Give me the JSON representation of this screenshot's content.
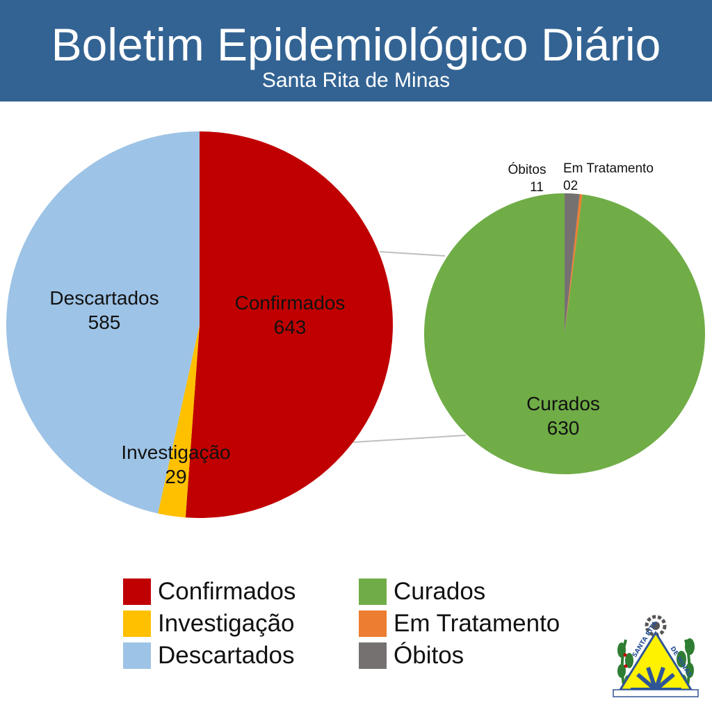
{
  "header": {
    "title": "Boletim Epidemiológico Diário",
    "subtitle": "Santa Rita de Minas"
  },
  "chart_data": [
    {
      "type": "pie",
      "slices": [
        {
          "label": "Confirmados",
          "value": 643,
          "display": "643",
          "color": "#C00000"
        },
        {
          "label": "Investigação",
          "value": 29,
          "display": "29",
          "color": "#FFC000"
        },
        {
          "label": "Descartados",
          "value": 585,
          "display": "585",
          "color": "#9DC3E6"
        }
      ]
    },
    {
      "type": "pie",
      "breakdown_of": "Confirmados",
      "slices": [
        {
          "label": "Curados",
          "value": 630,
          "display": "630",
          "color": "#70AD47"
        },
        {
          "label": "Em Tratamento",
          "value": 2,
          "display": "02",
          "color": "#ED7D31"
        },
        {
          "label": "Óbitos",
          "value": 11,
          "display": "11",
          "color": "#767171"
        }
      ]
    }
  ],
  "legend": {
    "columns": [
      [
        {
          "label": "Confirmados",
          "color": "#C00000"
        },
        {
          "label": "Investigação",
          "color": "#FFC000"
        },
        {
          "label": "Descartados",
          "color": "#9DC3E6"
        }
      ],
      [
        {
          "label": "Curados",
          "color": "#70AD47"
        },
        {
          "label": "Em Tratamento",
          "color": "#ED7D31"
        },
        {
          "label": "Óbitos",
          "color": "#767171"
        }
      ]
    ]
  },
  "emblem": {
    "text_top": "SANTA RITA",
    "text_right": "DE MINAS",
    "icon": "municipal-coat-of-arms-icon",
    "colors": {
      "blue": "#2F5597",
      "yellow": "#FFF200",
      "green": "#2E7D32",
      "red": "#C00000"
    }
  }
}
